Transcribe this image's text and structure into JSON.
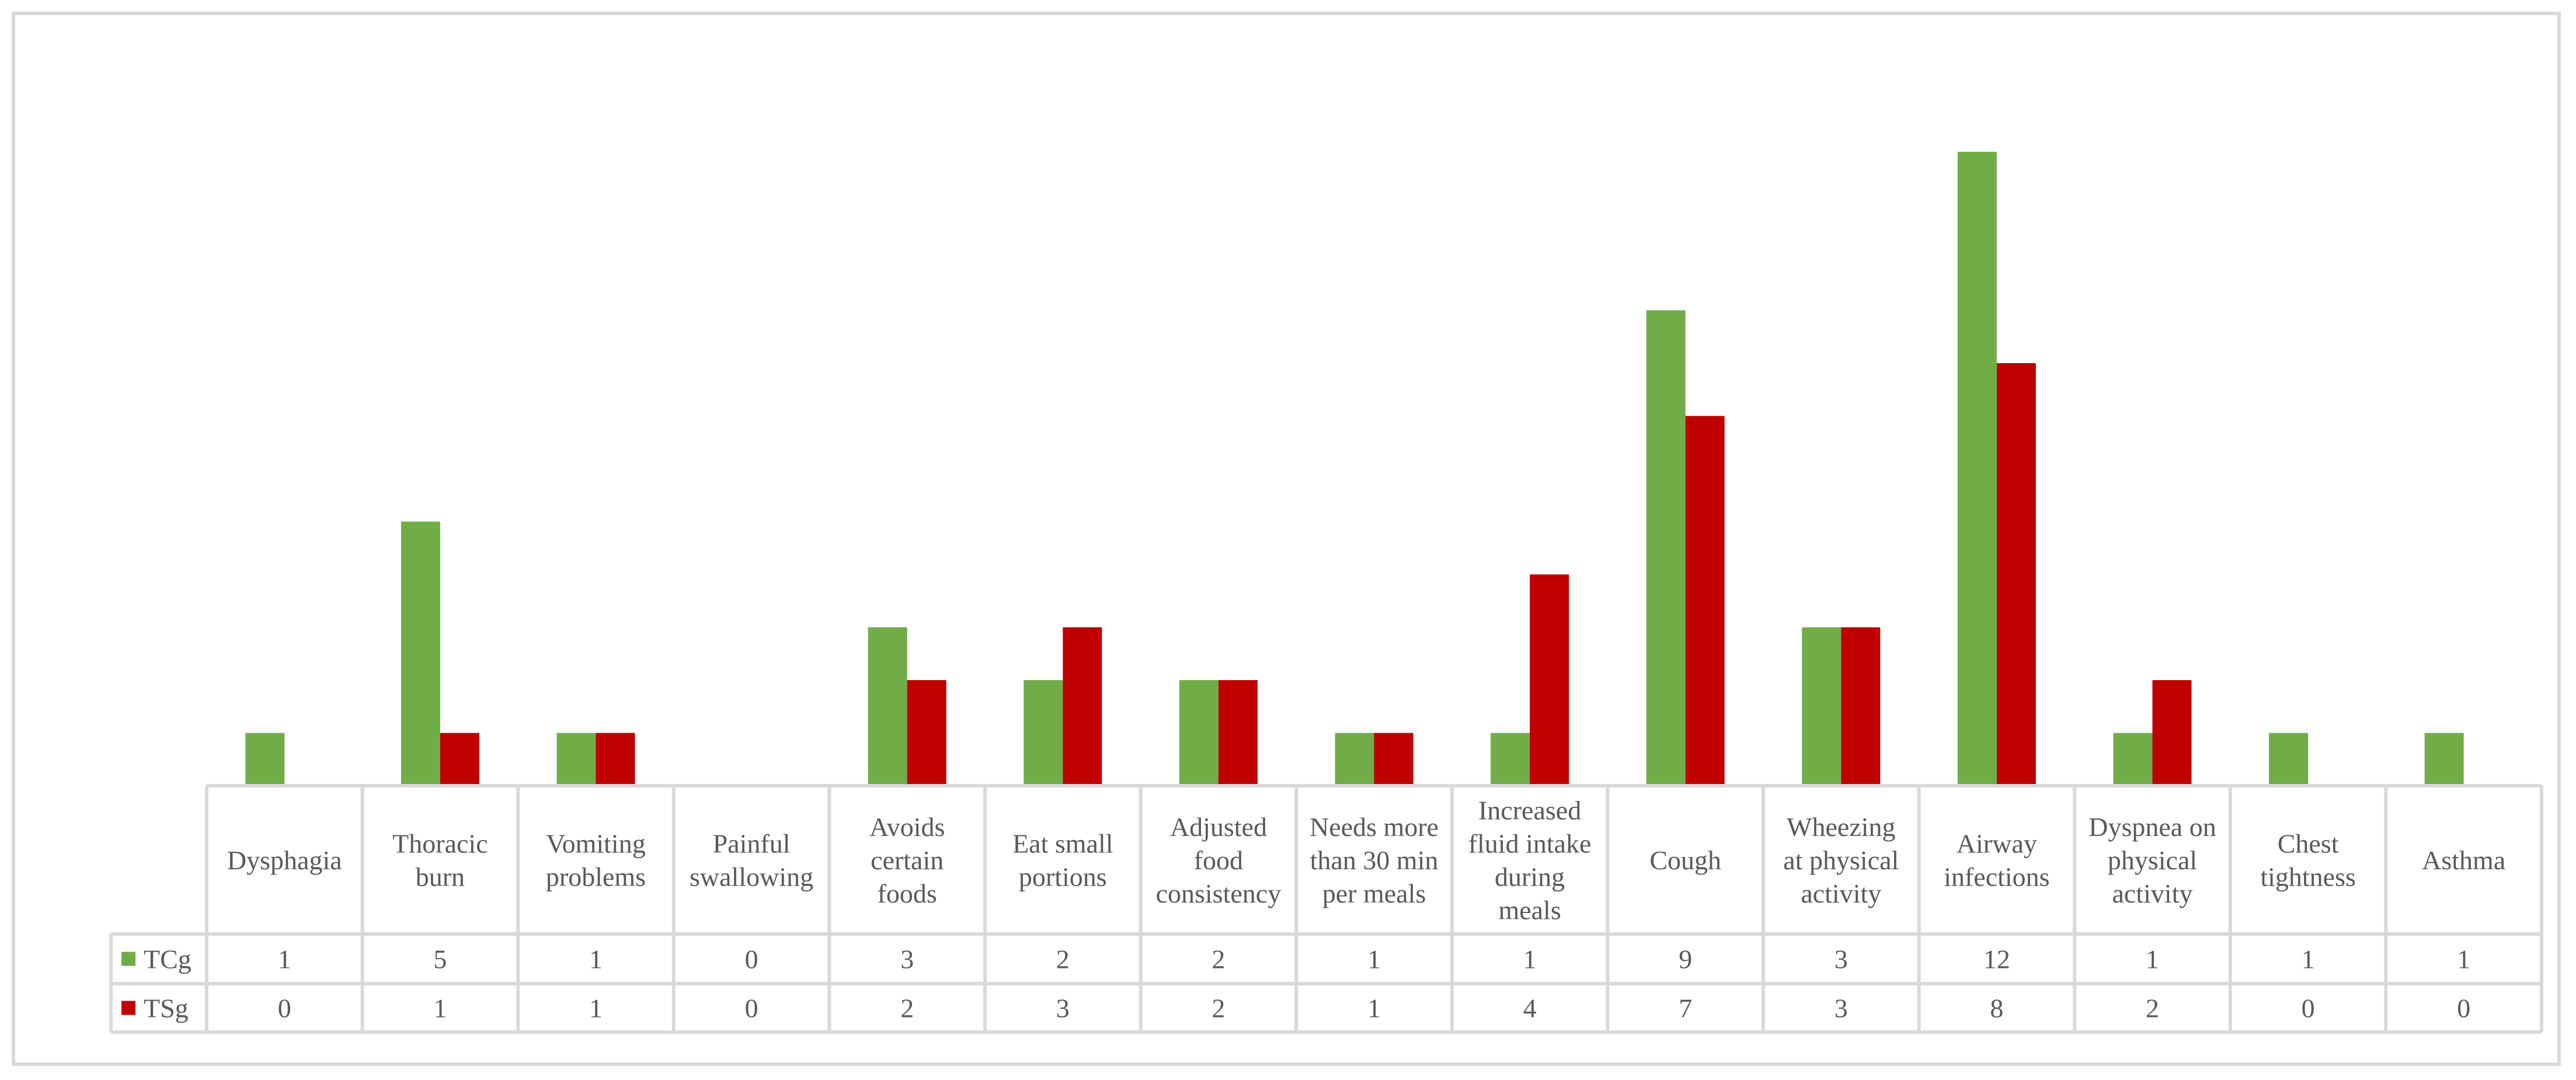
{
  "chart_data": {
    "type": "bar",
    "categories": [
      "Dysphagia",
      "Thoracic burn",
      "Vomiting problems",
      "Painful swallowing",
      "Avoids certain foods",
      "Eat small portions",
      "Adjusted food consistency",
      "Needs more than 30 min per meals",
      "Increased fluid intake during meals",
      "Cough",
      "Wheezing at physical activity",
      "Airway infections",
      "Dyspnea on physical activity",
      "Chest tightness",
      "Asthma"
    ],
    "category_lines": [
      [
        "Dysphagia"
      ],
      [
        "Thoracic",
        "burn"
      ],
      [
        "Vomiting",
        "problems"
      ],
      [
        "Painful",
        "swallowing"
      ],
      [
        "Avoids",
        "certain",
        "foods"
      ],
      [
        "Eat small",
        "portions"
      ],
      [
        "Adjusted",
        "food",
        "consistency"
      ],
      [
        "Needs more",
        "than 30 min",
        "per meals"
      ],
      [
        "Increased",
        "fluid intake",
        "during",
        "meals"
      ],
      [
        "Cough"
      ],
      [
        "Wheezing",
        "at physical",
        "activity"
      ],
      [
        "Airway",
        "infections"
      ],
      [
        "Dyspnea on",
        "physical",
        "activity"
      ],
      [
        "Chest",
        "tightness"
      ],
      [
        "Asthma"
      ]
    ],
    "series": [
      {
        "name": "TCg",
        "color": "#70ad47",
        "values": [
          1,
          5,
          1,
          0,
          3,
          2,
          2,
          1,
          1,
          9,
          3,
          12,
          1,
          1,
          1
        ]
      },
      {
        "name": "TSg",
        "color": "#c00000",
        "values": [
          0,
          1,
          1,
          0,
          2,
          3,
          2,
          1,
          4,
          7,
          3,
          8,
          2,
          0,
          0
        ]
      }
    ],
    "ylim": [
      0,
      12
    ],
    "grid": false,
    "legend": "data-table-rows",
    "title": "",
    "xlabel": "",
    "ylabel": ""
  }
}
